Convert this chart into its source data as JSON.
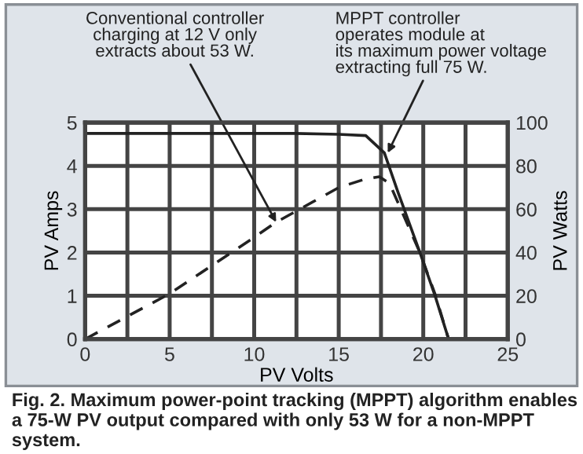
{
  "chart_data": {
    "type": "line",
    "xlabel": "PV Volts",
    "ylabel": "PV Amps",
    "y2label": "PV Watts",
    "xlim": [
      0,
      25
    ],
    "ylim": [
      0,
      5
    ],
    "y2lim": [
      0,
      100
    ],
    "xticks": [
      0,
      {
        "value": 2.5,
        "label": null
      },
      5,
      {
        "value": 7.5,
        "label": null
      },
      10,
      {
        "value": 12.5,
        "label": null
      },
      15,
      {
        "value": 17.5,
        "label": null
      },
      20,
      {
        "value": 22.5,
        "label": null
      },
      25
    ],
    "yticks": [
      0,
      1,
      2,
      3,
      4,
      5
    ],
    "y2ticks": [
      0,
      20,
      40,
      60,
      80,
      100
    ],
    "grid": true,
    "marker": "none",
    "series": [
      {
        "color": "#222222",
        "line_style": "solid",
        "x": [
          0,
          5,
          10,
          12.4,
          15,
          16.6,
          17.7,
          18.5,
          19.8,
          20.7,
          21.5
        ],
        "values": [
          4.75,
          4.75,
          4.75,
          4.75,
          4.73,
          4.7,
          4.3,
          3.4,
          2.0,
          1.0,
          0
        ]
      },
      {
        "color": "#222222",
        "line_style": "dashed",
        "axis": "y2",
        "x": [
          0,
          5,
          10,
          11.3,
          15,
          16.6,
          17.4,
          18.0,
          19.8,
          20.7,
          21.5
        ],
        "values": [
          0,
          21,
          47,
          54,
          70,
          74,
          75,
          72,
          40,
          20.7,
          0
        ]
      }
    ],
    "annotations": [
      {
        "text": "Conventional controller\ncharging at 12 V only\nextracts about 53 W.",
        "x": 11.3,
        "y": 2.7
      },
      {
        "text": "MPPT controller\noperates module at\nits maximum power voltage\nextracting full 75 W.",
        "x": 17.9,
        "y": 4.3
      },
      "Fig. 2. Maximum power-point tracking (MPPT) algorithm enables a 75-W PV output compared with only 53 W for a non-MPPT system."
    ]
  }
}
